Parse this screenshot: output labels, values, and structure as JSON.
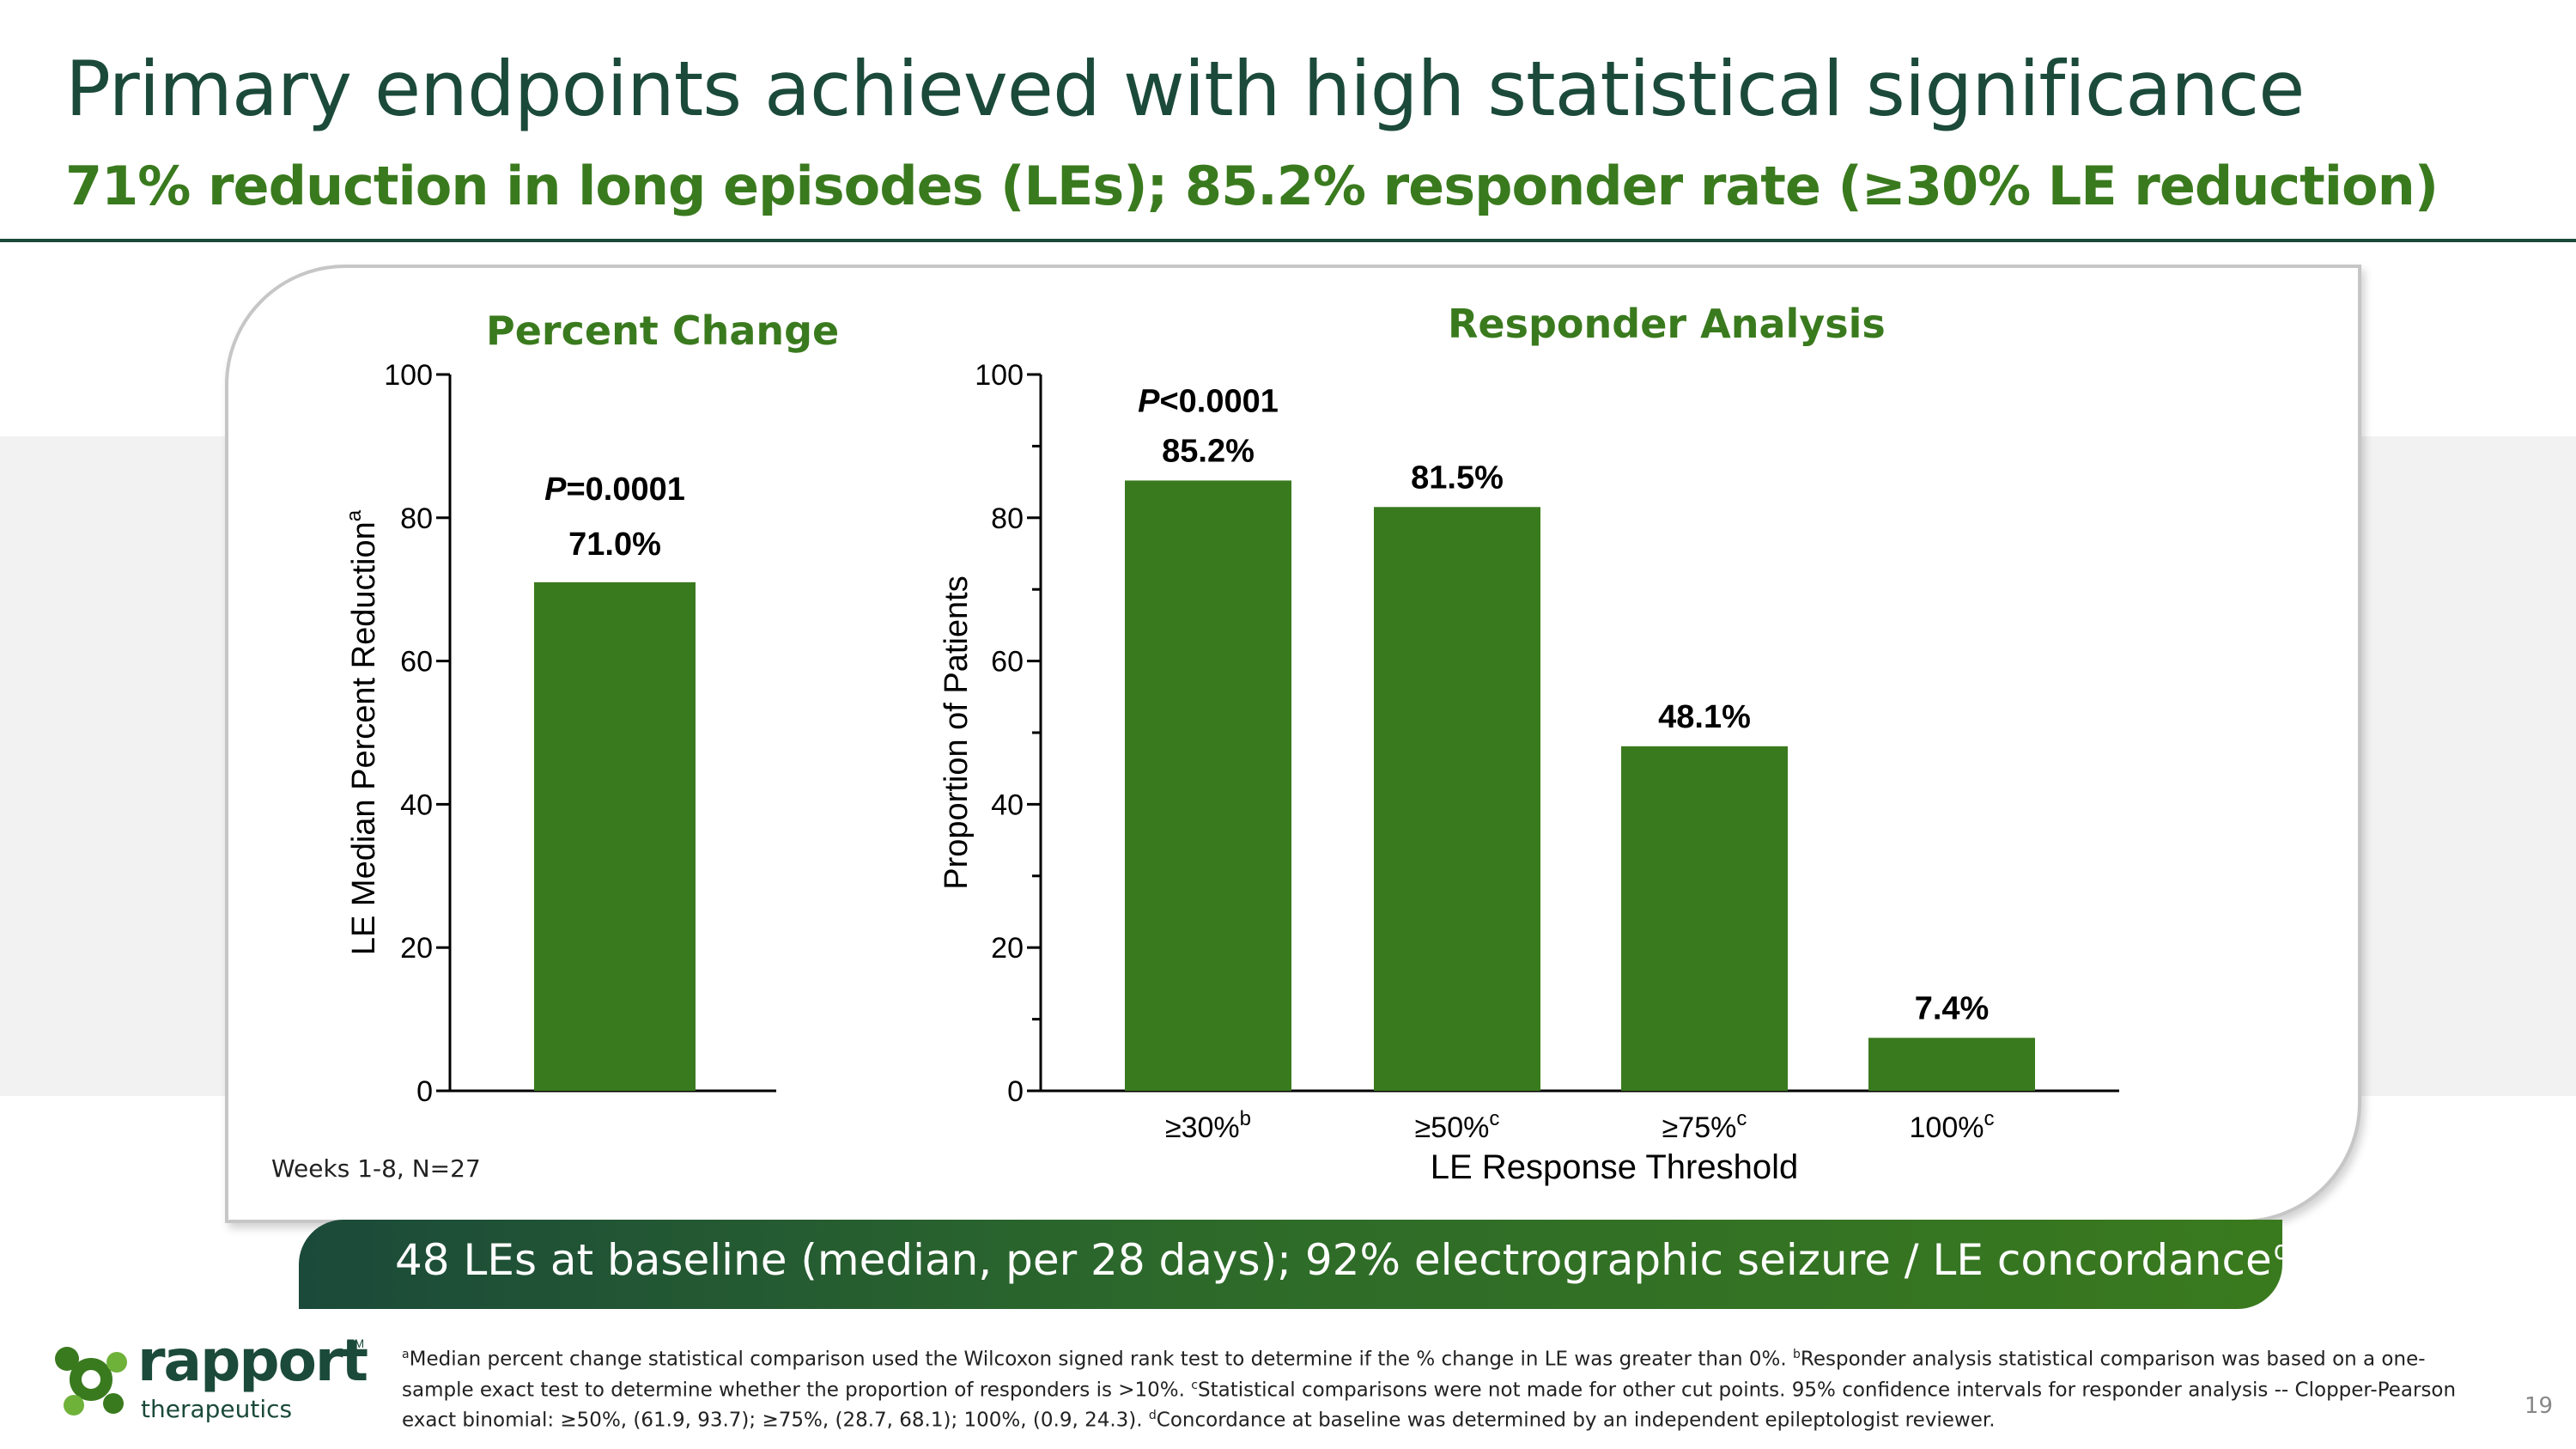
{
  "slide": {
    "title": "Primary endpoints achieved with high statistical significance",
    "subtitle": "71% reduction in long episodes (LEs); 85.2% responder rate (≥30% LE reduction)",
    "weeks_note": "Weeks 1-8, N=27",
    "baseline_text": "48 LEs at baseline (median, per 28 days); 92% electrographic seizure / LE concordance",
    "baseline_sup": "d",
    "page_number": "19"
  },
  "logo": {
    "word": "rapport",
    "trademark": "TM",
    "sub": "therapeutics"
  },
  "footnotes": [
    {
      "mark": "a",
      "text": "Median percent change statistical comparison used the Wilcoxon signed rank test to determine if the % change in LE was greater than 0%."
    },
    {
      "mark": "b",
      "text": "Responder analysis statistical comparison was based on a one-sample exact test to determine whether the proportion of responders is >10%."
    },
    {
      "mark": "c",
      "text": "Statistical comparisons were not made for other cut points. 95% confidence intervals for responder analysis -- Clopper-Pearson exact binomial: ≥50%, (61.9, 93.7); ≥75%, (28.7, 68.1); 100%, (0.9, 24.3)."
    },
    {
      "mark": "d",
      "text": "Concordance at baseline was determined by an independent epileptologist reviewer."
    }
  ],
  "colors": {
    "bar": "#3a7a1e",
    "title": "#1b4a3a",
    "accent": "#3a7a1e"
  },
  "chart_data": [
    {
      "type": "bar",
      "title": "Percent Change",
      "ylabel": "LE Median Percent Reduction",
      "ylabel_sup": "a",
      "xlabel": "",
      "ylim": [
        0,
        100
      ],
      "yticks": [
        "0",
        "20",
        "40",
        "60",
        "80",
        "100"
      ],
      "categories": [
        ""
      ],
      "values": [
        71.0
      ],
      "value_labels": [
        "71.0%"
      ],
      "p_value": {
        "prefix": "P",
        "text": "=0.0001"
      }
    },
    {
      "type": "bar",
      "title": "Responder Analysis",
      "ylabel": "Proportion of Patients",
      "xlabel": "LE Response Threshold",
      "ylim": [
        0,
        100
      ],
      "yticks": [
        "0",
        "20",
        "40",
        "60",
        "80",
        "100"
      ],
      "categories": [
        "≥30%",
        "≥50%",
        "≥75%",
        "100%"
      ],
      "category_sups": [
        "b",
        "c",
        "c",
        "c"
      ],
      "values": [
        85.2,
        81.5,
        48.1,
        7.4
      ],
      "value_labels": [
        "85.2%",
        "81.5%",
        "48.1%",
        "7.4%"
      ],
      "p_value": {
        "prefix": "P",
        "text": "<0.0001"
      }
    }
  ]
}
